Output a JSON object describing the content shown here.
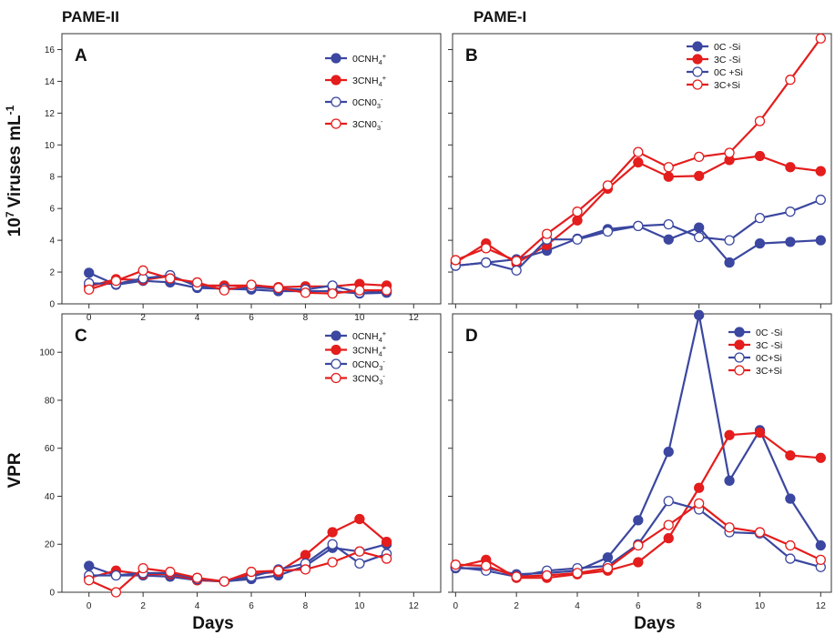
{
  "headers": {
    "left": "PAME-II",
    "right": "PAME-I"
  },
  "colors": {
    "blue": "#3b47a0",
    "red": "#e41d1d"
  },
  "chart_data": [
    {
      "panel": "A",
      "type": "line",
      "ylabel_main": "Viruses mL",
      "ylabel_pre": "10",
      "ylabel_exp": "7",
      "ylabel_post": "-1",
      "xlabel": "",
      "xlim": [
        -1,
        13
      ],
      "ylim": [
        0,
        17
      ],
      "xticks": [
        0,
        2,
        4,
        6,
        8,
        10,
        12
      ],
      "yticks": [
        0,
        2,
        4,
        6,
        8,
        10,
        12,
        14,
        16
      ],
      "legend": "top-right",
      "show_xticklabels": true,
      "series": [
        {
          "name": "0CNH",
          "ion": "4",
          "charge": "+",
          "color": "#3b47a0",
          "filled": true,
          "x": [
            0,
            1,
            2,
            3,
            4,
            5,
            6,
            7,
            8,
            9,
            10,
            11
          ],
          "y": [
            1.95,
            1.2,
            1.45,
            1.35,
            1.0,
            0.95,
            0.9,
            0.8,
            0.8,
            0.8,
            0.65,
            0.7
          ]
        },
        {
          "name": "3CNH",
          "ion": "4",
          "charge": "+",
          "color": "#e41d1d",
          "filled": true,
          "x": [
            0,
            1,
            2,
            3,
            4,
            5,
            6,
            7,
            8,
            9,
            10,
            11
          ],
          "y": [
            1.1,
            1.55,
            1.5,
            1.75,
            1.15,
            1.15,
            1.15,
            1.05,
            1.1,
            1.1,
            1.25,
            1.15
          ]
        },
        {
          "name": "0CN0",
          "ion": "3",
          "charge": "-",
          "color": "#3b47a0",
          "filled": false,
          "x": [
            0,
            1,
            2,
            3,
            4,
            5,
            6,
            7,
            8,
            9,
            10,
            11
          ],
          "y": [
            1.3,
            1.25,
            1.6,
            1.8,
            1.1,
            0.95,
            1.05,
            0.95,
            0.9,
            1.15,
            0.7,
            0.8
          ]
        },
        {
          "name": "3CN0",
          "ion": "3",
          "charge": "-",
          "color": "#e41d1d",
          "filled": false,
          "x": [
            0,
            1,
            2,
            3,
            4,
            5,
            6,
            7,
            8,
            9,
            10,
            11
          ],
          "y": [
            0.9,
            1.45,
            2.1,
            1.6,
            1.35,
            0.85,
            1.2,
            1.0,
            0.7,
            0.65,
            0.85,
            0.85
          ]
        }
      ]
    },
    {
      "panel": "B",
      "type": "line",
      "xlim": [
        -0.1,
        12.35
      ],
      "ylim": [
        0,
        17
      ],
      "xticks": [
        0,
        2,
        4,
        6,
        8,
        10,
        12
      ],
      "yticks": [
        0,
        2,
        4,
        6,
        8,
        10,
        12,
        14,
        16
      ],
      "legend": "top-left",
      "show_xticklabels": false,
      "series": [
        {
          "name": "0C -Si",
          "color": "#3b47a0",
          "filled": true,
          "x": [
            0,
            1,
            2,
            3,
            4,
            5,
            6,
            7,
            8,
            9,
            10,
            11,
            12
          ],
          "y": [
            2.4,
            2.6,
            2.8,
            3.35,
            4.1,
            4.7,
            4.9,
            4.05,
            4.8,
            2.6,
            3.8,
            3.9,
            4.0
          ]
        },
        {
          "name": "3C -Si",
          "color": "#e41d1d",
          "filled": true,
          "x": [
            0,
            1,
            2,
            3,
            4,
            5,
            6,
            7,
            8,
            9,
            10,
            11,
            12
          ],
          "y": [
            2.6,
            3.8,
            2.55,
            3.7,
            5.25,
            7.25,
            8.9,
            8.0,
            8.05,
            9.05,
            9.3,
            8.6,
            8.35
          ]
        },
        {
          "name": "0C +Si",
          "color": "#3b47a0",
          "filled": false,
          "x": [
            0,
            1,
            2,
            3,
            4,
            5,
            6,
            7,
            8,
            9,
            10,
            11,
            12
          ],
          "y": [
            2.4,
            2.6,
            2.1,
            4.05,
            4.05,
            4.55,
            4.9,
            5.0,
            4.2,
            4.0,
            5.4,
            5.8,
            6.55
          ]
        },
        {
          "name": "3C+Si",
          "color": "#e41d1d",
          "filled": false,
          "x": [
            0,
            1,
            2,
            3,
            4,
            5,
            6,
            7,
            8,
            9,
            10,
            11,
            12
          ],
          "y": [
            2.75,
            3.5,
            2.7,
            4.4,
            5.8,
            7.45,
            9.55,
            8.6,
            9.25,
            9.5,
            11.5,
            14.1,
            16.7
          ]
        }
      ]
    },
    {
      "panel": "C",
      "type": "line",
      "ylabel": "VPR",
      "xlabel": "Days",
      "xlim": [
        -1,
        13
      ],
      "ylim": [
        0,
        116
      ],
      "xticks": [
        0,
        2,
        4,
        6,
        8,
        10,
        12
      ],
      "yticks": [
        0,
        20,
        40,
        60,
        80,
        100
      ],
      "legend": "top-right",
      "show_xticklabels": true,
      "series": [
        {
          "name": "0CNH",
          "ion": "4",
          "charge": "+",
          "color": "#3b47a0",
          "filled": true,
          "x": [
            0,
            1,
            2,
            3,
            4,
            5,
            6,
            7,
            8,
            9,
            10,
            11
          ],
          "y": [
            11,
            7,
            7,
            6.5,
            5,
            4.5,
            5.5,
            7,
            11,
            18.5,
            17,
            20
          ]
        },
        {
          "name": "3CNH",
          "ion": "4",
          "charge": "+",
          "color": "#e41d1d",
          "filled": true,
          "x": [
            0,
            1,
            2,
            3,
            4,
            5,
            6,
            7,
            8,
            9,
            10,
            11
          ],
          "y": [
            6,
            9,
            7.5,
            7.5,
            5,
            4.5,
            7.5,
            8.5,
            15.5,
            25,
            30.5,
            21
          ]
        },
        {
          "name": "0CNO",
          "ion": "3",
          "charge": "-",
          "color": "#3b47a0",
          "filled": false,
          "x": [
            0,
            1,
            2,
            3,
            4,
            5,
            6,
            7,
            8,
            9,
            10,
            11
          ],
          "y": [
            7,
            7,
            8,
            8,
            5.5,
            4.5,
            6.5,
            9.5,
            12,
            20,
            12,
            16
          ]
        },
        {
          "name": "3CNO",
          "ion": "3",
          "charge": "-",
          "color": "#e41d1d",
          "filled": false,
          "x": [
            0,
            1,
            2,
            3,
            4,
            5,
            6,
            7,
            8,
            9,
            10,
            11
          ],
          "y": [
            5,
            0,
            10,
            8.5,
            6,
            4.5,
            8.5,
            9,
            9.5,
            12.5,
            17,
            14
          ]
        }
      ]
    },
    {
      "panel": "D",
      "type": "line",
      "xlabel": "Days",
      "xlim": [
        -0.1,
        12.35
      ],
      "ylim": [
        0,
        116
      ],
      "xticks": [
        0,
        2,
        4,
        6,
        8,
        10,
        12
      ],
      "yticks": [
        0,
        20,
        40,
        60,
        80,
        100
      ],
      "legend": "top-right",
      "show_xticklabels": true,
      "series": [
        {
          "name": "0C -Si",
          "color": "#3b47a0",
          "filled": true,
          "x": [
            0,
            1,
            2,
            3,
            4,
            5,
            6,
            7,
            8,
            9,
            10,
            11,
            12
          ],
          "y": [
            10,
            10,
            7.5,
            8,
            9,
            14.5,
            30,
            58.5,
            115.5,
            46.5,
            67.5,
            39,
            19.5
          ]
        },
        {
          "name": "3C -Si",
          "color": "#e41d1d",
          "filled": true,
          "x": [
            0,
            1,
            2,
            3,
            4,
            5,
            6,
            7,
            8,
            9,
            10,
            11,
            12
          ],
          "y": [
            10.5,
            13.5,
            6,
            6,
            7.5,
            9,
            12.5,
            22.5,
            43.5,
            65.5,
            66.5,
            57,
            56
          ]
        },
        {
          "name": "0C+Si",
          "color": "#3b47a0",
          "filled": false,
          "x": [
            0,
            1,
            2,
            3,
            4,
            5,
            6,
            7,
            8,
            9,
            10,
            11,
            12
          ],
          "y": [
            10.5,
            9,
            6.5,
            9,
            10,
            11,
            20,
            38,
            34.5,
            25,
            24.5,
            14,
            10.5
          ]
        },
        {
          "name": "3C+Si",
          "color": "#e41d1d",
          "filled": false,
          "x": [
            0,
            1,
            2,
            3,
            4,
            5,
            6,
            7,
            8,
            9,
            10,
            11,
            12
          ],
          "y": [
            11.5,
            11,
            6.5,
            7,
            8,
            10,
            19.5,
            28,
            37,
            27,
            25,
            19.5,
            13.5
          ]
        }
      ]
    }
  ]
}
